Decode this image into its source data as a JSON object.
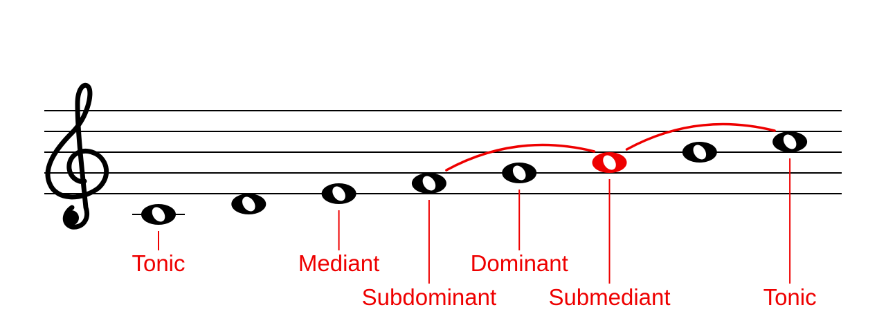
{
  "colors": {
    "staff": "#000000",
    "note": "#000000",
    "highlight": "#ee0000",
    "label": "#ee0000"
  },
  "staff": {
    "clef": "treble",
    "clef_icon": "treble-clef-icon",
    "line_count": 5
  },
  "notes": [
    {
      "pitch": "C4",
      "ledger_line": true
    },
    {
      "pitch": "D4"
    },
    {
      "pitch": "E4"
    },
    {
      "pitch": "F4"
    },
    {
      "pitch": "G4"
    },
    {
      "pitch": "A4",
      "highlighted": true
    },
    {
      "pitch": "B4"
    },
    {
      "pitch": "C5"
    }
  ],
  "labels": [
    {
      "text": "Tonic",
      "note": 0
    },
    {
      "text": "Mediant",
      "note": 2
    },
    {
      "text": "Subdominant",
      "note": 3
    },
    {
      "text": "Dominant",
      "note": 4
    },
    {
      "text": "Submediant",
      "note": 5
    },
    {
      "text": "Tonic",
      "note": 7
    }
  ],
  "arcs": [
    {
      "from_note": 3,
      "to_note": 5
    },
    {
      "from_note": 5,
      "to_note": 7
    }
  ]
}
